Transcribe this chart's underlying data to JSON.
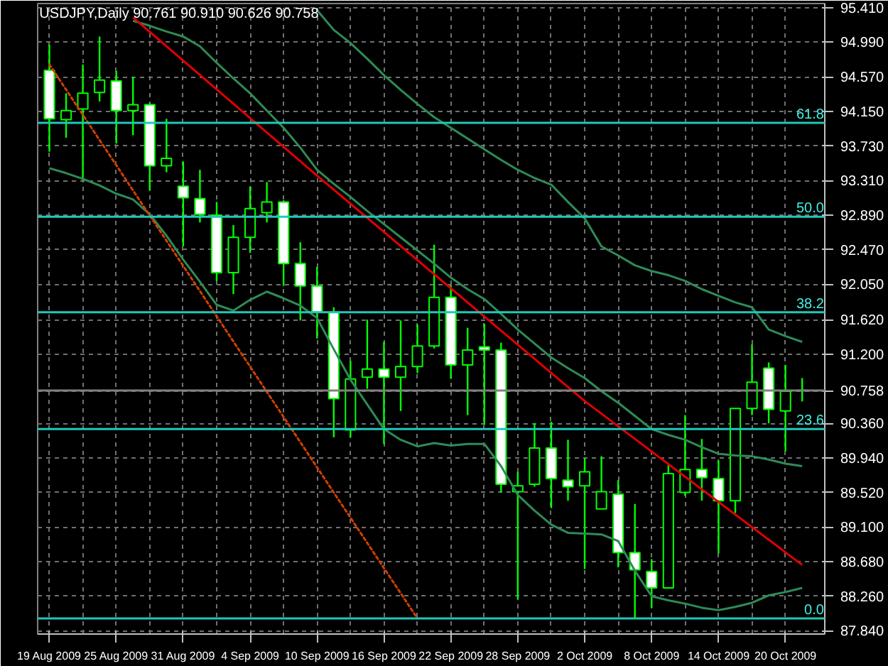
{
  "chart_data": {
    "type": "candlestick",
    "title": "USDJPY,Daily  90.761 90.910 90.626 90.758",
    "categories": [
      "19 Aug 2009",
      null,
      null,
      null,
      "25 Aug 2009",
      null,
      null,
      null,
      "31 Aug 2009",
      null,
      null,
      null,
      "4 Sep 2009",
      null,
      null,
      null,
      "10 Sep 2009",
      null,
      null,
      null,
      "16 Sep 2009",
      null,
      null,
      null,
      "22 Sep 2009",
      null,
      null,
      null,
      "28 Sep 2009",
      null,
      null,
      null,
      "2 Oct 2009",
      null,
      null,
      null,
      "8 Oct 2009",
      null,
      null,
      null,
      "14 Oct 2009",
      null,
      null,
      null,
      "20 Oct 2009",
      null
    ],
    "ohlc": [
      [
        94.65,
        94.96,
        93.66,
        94.06
      ],
      [
        94.05,
        94.37,
        93.83,
        94.16
      ],
      [
        94.18,
        94.72,
        93.31,
        94.37
      ],
      [
        94.38,
        95.06,
        94.27,
        94.53
      ],
      [
        94.52,
        94.64,
        93.76,
        94.16
      ],
      [
        94.16,
        94.57,
        93.86,
        94.23
      ],
      [
        94.23,
        94.25,
        93.19,
        93.49
      ],
      [
        93.49,
        94.06,
        93.41,
        93.58
      ],
      [
        93.24,
        93.54,
        92.51,
        93.1
      ],
      [
        93.09,
        93.44,
        92.8,
        92.9
      ],
      [
        92.89,
        93.05,
        92.09,
        92.19
      ],
      [
        92.19,
        92.77,
        91.93,
        92.62
      ],
      [
        92.62,
        93.24,
        92.43,
        92.97
      ],
      [
        92.92,
        93.29,
        92.8,
        93.05
      ],
      [
        93.05,
        93.07,
        92.03,
        92.3
      ],
      [
        92.3,
        92.56,
        91.61,
        92.03
      ],
      [
        92.03,
        92.26,
        91.39,
        91.71
      ],
      [
        91.71,
        91.77,
        90.19,
        90.66
      ],
      [
        90.28,
        91.12,
        90.19,
        90.9
      ],
      [
        90.92,
        91.62,
        90.78,
        91.02
      ],
      [
        91.02,
        91.35,
        90.11,
        90.92
      ],
      [
        90.92,
        91.61,
        90.51,
        91.05
      ],
      [
        91.05,
        91.56,
        90.97,
        91.3
      ],
      [
        91.3,
        92.53,
        91.27,
        91.89
      ],
      [
        91.89,
        92.04,
        90.9,
        91.07
      ],
      [
        91.07,
        91.52,
        90.46,
        91.25
      ],
      [
        91.29,
        91.57,
        90.34,
        91.25
      ],
      [
        91.25,
        91.34,
        89.52,
        89.62
      ],
      [
        89.53,
        89.77,
        88.22,
        89.6
      ],
      [
        89.62,
        90.36,
        89.59,
        90.06
      ],
      [
        90.06,
        90.38,
        89.33,
        89.69
      ],
      [
        89.67,
        90.16,
        89.42,
        89.59
      ],
      [
        89.6,
        89.94,
        88.59,
        89.77
      ],
      [
        89.32,
        89.96,
        89.32,
        89.53
      ],
      [
        89.5,
        89.67,
        88.61,
        88.79
      ],
      [
        88.79,
        89.38,
        87.99,
        88.58
      ],
      [
        88.56,
        88.71,
        88.12,
        88.36
      ],
      [
        88.36,
        89.85,
        88.36,
        89.75
      ],
      [
        89.52,
        90.46,
        89.48,
        89.8
      ],
      [
        89.8,
        90.17,
        89.42,
        89.7
      ],
      [
        89.69,
        89.91,
        88.78,
        89.42
      ],
      [
        89.42,
        90.54,
        89.27,
        90.54
      ],
      [
        90.54,
        91.32,
        90.46,
        90.86
      ],
      [
        91.03,
        91.1,
        90.36,
        90.53
      ],
      [
        90.51,
        91.07,
        90.02,
        90.75
      ],
      [
        90.761,
        90.91,
        90.626,
        90.758
      ]
    ],
    "series": [
      {
        "type": "line",
        "color": "#2e8b57",
        "line_style": "solid",
        "values": [
          null,
          null,
          null,
          null,
          null,
          null,
          null,
          null,
          null,
          null,
          null,
          null,
          null,
          null,
          null,
          null,
          95.38,
          95.14,
          94.98,
          94.79,
          94.59,
          94.41,
          94.24,
          94.08,
          93.95,
          93.82,
          93.69,
          93.56,
          93.44,
          93.34,
          93.26,
          93.05,
          92.85,
          92.51,
          92.4,
          92.28,
          92.21,
          92.16,
          92.09,
          91.99,
          91.91,
          91.83,
          91.77,
          91.5,
          91.42,
          91.35
        ]
      },
      {
        "type": "line",
        "color": "#2e8b57",
        "line_style": "solid",
        "values": [
          null,
          null,
          null,
          null,
          null,
          95.25,
          95.19,
          95.12,
          95.06,
          94.94,
          94.74,
          94.55,
          94.37,
          94.16,
          93.95,
          93.71,
          93.44,
          93.27,
          93.11,
          92.94,
          92.78,
          92.62,
          92.46,
          92.3,
          92.13,
          91.99,
          91.87,
          91.69,
          91.5,
          91.33,
          91.16,
          91.03,
          90.91,
          90.75,
          90.61,
          90.45,
          90.29,
          90.22,
          90.16,
          90.07,
          89.99,
          89.97,
          89.96,
          89.92,
          89.87,
          89.84
        ]
      },
      {
        "type": "line",
        "color": "#2e8b57",
        "line_style": "solid",
        "values": [
          93.46,
          93.4,
          93.33,
          93.25,
          93.15,
          93.08,
          92.9,
          92.64,
          92.35,
          92.08,
          91.8,
          91.73,
          91.86,
          91.96,
          91.88,
          91.79,
          91.64,
          91.26,
          90.89,
          90.59,
          90.29,
          90.16,
          90.08,
          90.12,
          90.09,
          90.11,
          90.11,
          89.84,
          89.49,
          89.3,
          89.13,
          89.03,
          89.02,
          89.01,
          88.93,
          88.57,
          88.26,
          88.21,
          88.17,
          88.12,
          88.09,
          88.13,
          88.18,
          88.27,
          88.31,
          88.36
        ]
      },
      {
        "type": "line",
        "color": "#e00000",
        "line_style": "solid",
        "values": [
          null,
          null,
          null,
          null,
          null,
          95.29,
          null,
          null,
          null,
          null,
          null,
          null,
          null,
          null,
          null,
          null,
          93.37,
          null,
          null,
          null,
          null,
          null,
          null,
          null,
          null,
          null,
          null,
          null,
          null,
          null,
          null,
          null,
          90.63,
          null,
          null,
          null,
          null,
          null,
          null,
          null,
          null,
          null,
          null,
          null,
          null,
          88.64
        ]
      },
      {
        "type": "line",
        "color": "#d04000",
        "line_style": "dotted",
        "values": [
          94.72,
          null,
          null,
          null,
          null,
          null,
          null,
          null,
          null,
          null,
          null,
          null,
          null,
          null,
          null,
          null,
          null,
          null,
          null,
          null,
          null,
          null,
          87.99,
          null,
          null,
          null,
          null,
          null,
          null,
          null,
          null,
          null,
          null,
          null,
          null,
          null,
          null,
          null,
          null,
          null,
          null,
          null,
          null,
          null,
          null,
          null
        ]
      }
    ],
    "ylim": [
      87.8,
      95.46
    ],
    "yticks": [
      {
        "value": 95.41,
        "label": "95.410"
      },
      {
        "value": 94.99,
        "label": "94.990"
      },
      {
        "value": 94.57,
        "label": "94.570"
      },
      {
        "value": 94.15,
        "label": "94.150"
      },
      {
        "value": 93.73,
        "label": "93.730"
      },
      {
        "value": 93.31,
        "label": "93.310"
      },
      {
        "value": 92.89,
        "label": "92.890"
      },
      {
        "value": 92.47,
        "label": "92.470"
      },
      {
        "value": 92.05,
        "label": "92.050"
      },
      {
        "value": 91.62,
        "label": "91.620"
      },
      {
        "value": 91.2,
        "label": "91.200"
      },
      {
        "value": 90.758,
        "label": "90.758"
      },
      {
        "value": 90.36,
        "label": "90.360"
      },
      {
        "value": 89.94,
        "label": "89.940"
      },
      {
        "value": 89.52,
        "label": "89.520"
      },
      {
        "value": 89.1,
        "label": "89.100"
      },
      {
        "value": 88.68,
        "label": "88.680"
      },
      {
        "value": 88.26,
        "label": "88.260"
      },
      {
        "value": 87.84,
        "label": "87.840"
      }
    ],
    "ref_lines": [
      {
        "axis": "y",
        "value": 94.01,
        "color": "#20c8b8"
      },
      {
        "axis": "y",
        "value": 92.87,
        "color": "#20c8b8"
      },
      {
        "axis": "y",
        "value": 91.71,
        "color": "#20c8b8"
      },
      {
        "axis": "y",
        "value": 90.29,
        "color": "#20c8b8"
      },
      {
        "axis": "y",
        "value": 87.99,
        "color": "#20c8b8"
      },
      {
        "axis": "y",
        "value": 90.758,
        "color": "#808080"
      }
    ],
    "annotations": [
      {
        "text": "61.8",
        "y": 94.01
      },
      {
        "text": "50.0",
        "y": 92.87
      },
      {
        "text": "38.2",
        "y": 91.71
      },
      {
        "text": "23.6",
        "y": 90.29
      },
      {
        "text": "0.0",
        "y": 87.99
      }
    ],
    "grid": true,
    "marker": "none"
  }
}
